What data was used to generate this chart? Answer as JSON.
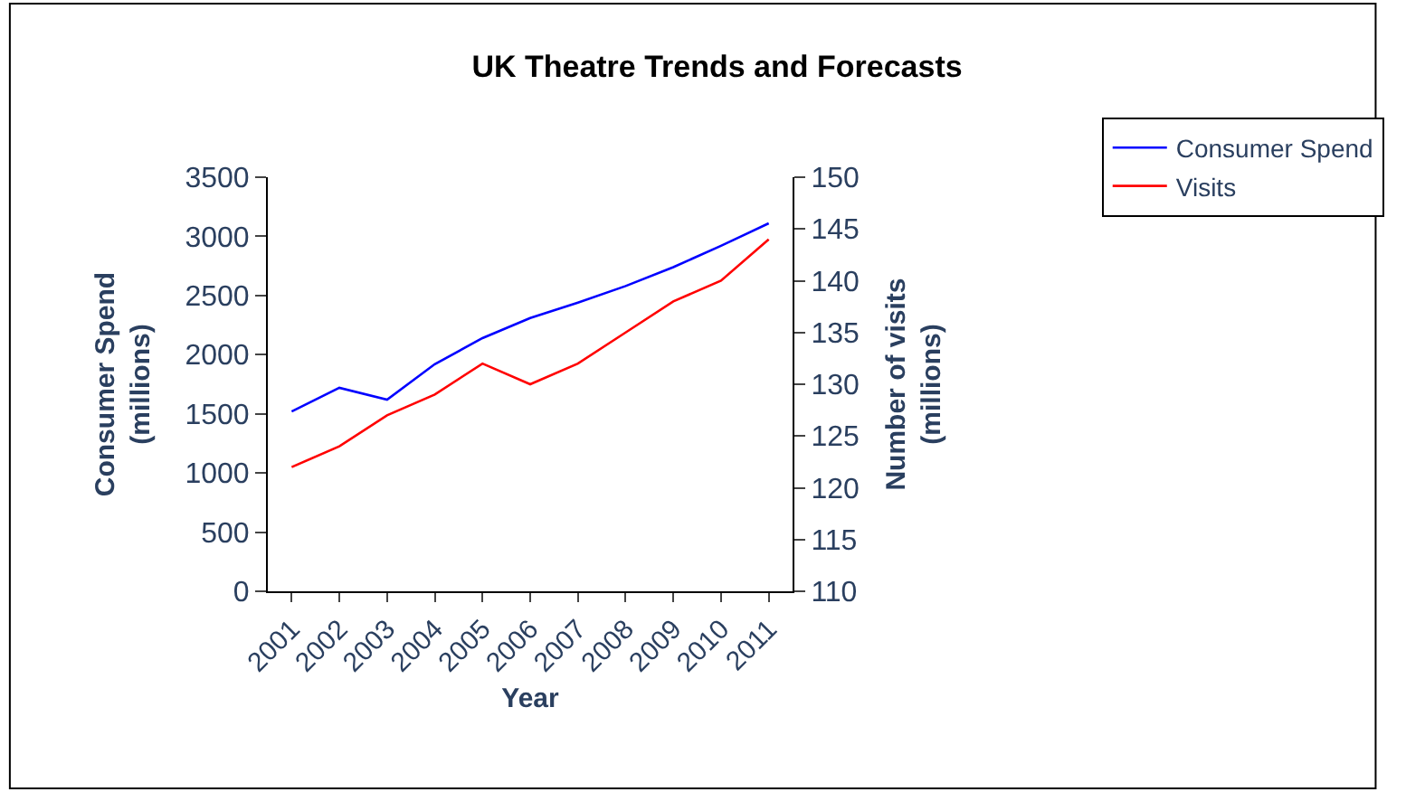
{
  "chart_data": {
    "type": "line",
    "title": "UK Theatre Trends and Forecasts",
    "xlabel": "Year",
    "ylabel": "Consumer Spend (millions)",
    "y2label": "Number of visits (millions)",
    "categories": [
      "2001",
      "2002",
      "2003",
      "2004",
      "2005",
      "2006",
      "2007",
      "2008",
      "2009",
      "2010",
      "2011"
    ],
    "series": [
      {
        "name": "Consumer Spend",
        "color": "#0000ff",
        "values": [
          1520,
          1720,
          1620,
          1920,
          2140,
          2310,
          2440,
          2580,
          2740,
          2920,
          3110
        ]
      },
      {
        "name": "Visits",
        "color": "#ff0000",
        "axis": "y2",
        "values": [
          122,
          124,
          127,
          129,
          132,
          130,
          132,
          135,
          138,
          140,
          144
        ]
      }
    ],
    "ylim": [
      0,
      3500
    ],
    "yticks": [
      0,
      500,
      1000,
      1500,
      2000,
      2500,
      3000,
      3500
    ],
    "y2lim": [
      110,
      150
    ],
    "y2ticks": [
      110,
      115,
      120,
      125,
      130,
      135,
      140,
      145,
      150
    ],
    "legend": "right",
    "grid": false,
    "marker": "none",
    "line_style": "solid"
  }
}
